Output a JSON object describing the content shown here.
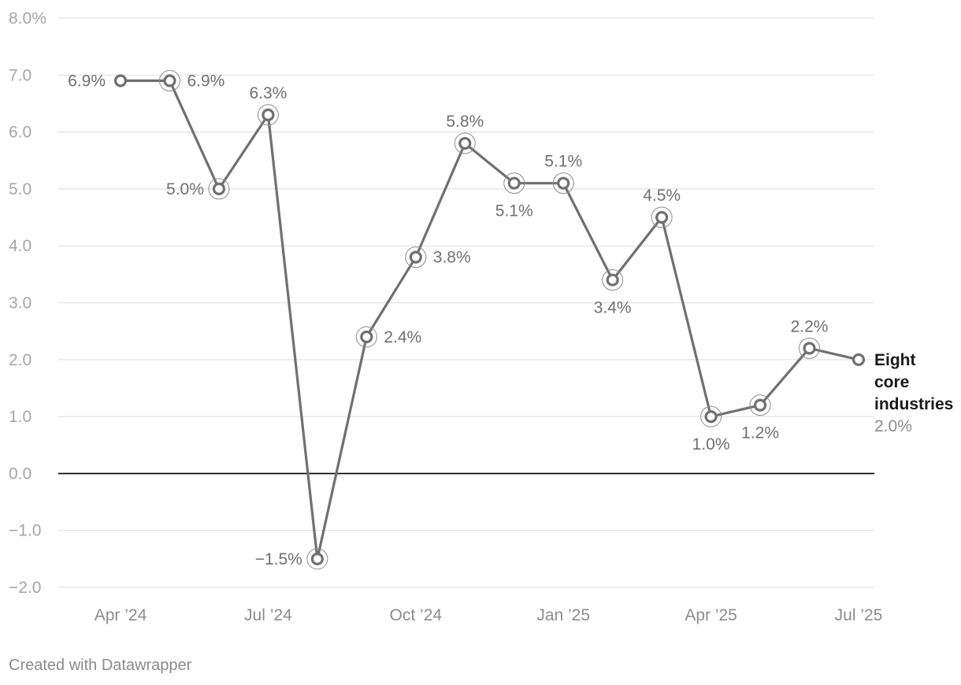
{
  "chart_data": {
    "type": "line",
    "x": [
      "Apr 2024",
      "May 2024",
      "Jun 2024",
      "Jul 2024",
      "Aug 2024",
      "Sep 2024",
      "Oct 2024",
      "Nov 2024",
      "Dec 2024",
      "Jan 2025",
      "Feb 2025",
      "Mar 2025",
      "Apr 2025",
      "May 2025",
      "Jun 2025",
      "Jul 2025"
    ],
    "series": [
      {
        "name": "Eight core industries",
        "values": [
          6.9,
          6.9,
          5.0,
          6.3,
          -1.5,
          2.4,
          3.8,
          5.8,
          5.1,
          5.1,
          3.4,
          4.5,
          1.0,
          1.2,
          2.2,
          2.0
        ],
        "data_labels": [
          "6.9%",
          "6.9%",
          "5.0%",
          "6.3%",
          "−1.5%",
          "2.4%",
          "3.8%",
          "5.8%",
          "5.1%",
          "5.1%",
          "3.4%",
          "4.5%",
          "1.0%",
          "1.2%",
          "2.2%",
          "2.0%"
        ],
        "color": "#707070"
      }
    ],
    "ylim": [
      -2,
      8
    ],
    "y_ticks": [
      "8.0%",
      "7.0",
      "6.0",
      "5.0",
      "4.0",
      "3.0",
      "2.0",
      "1.0",
      "0.0",
      "−1.0",
      "−2.0"
    ],
    "x_tick_labels": [
      "Apr ’24",
      "Jul ’24",
      "Oct ’24",
      "Jan ’25",
      "Apr ’25",
      "Jul ’25"
    ],
    "grid": true,
    "zero_line": true,
    "series_label_placement": "right-end"
  },
  "footer": {
    "credit": "Created with Datawrapper"
  }
}
